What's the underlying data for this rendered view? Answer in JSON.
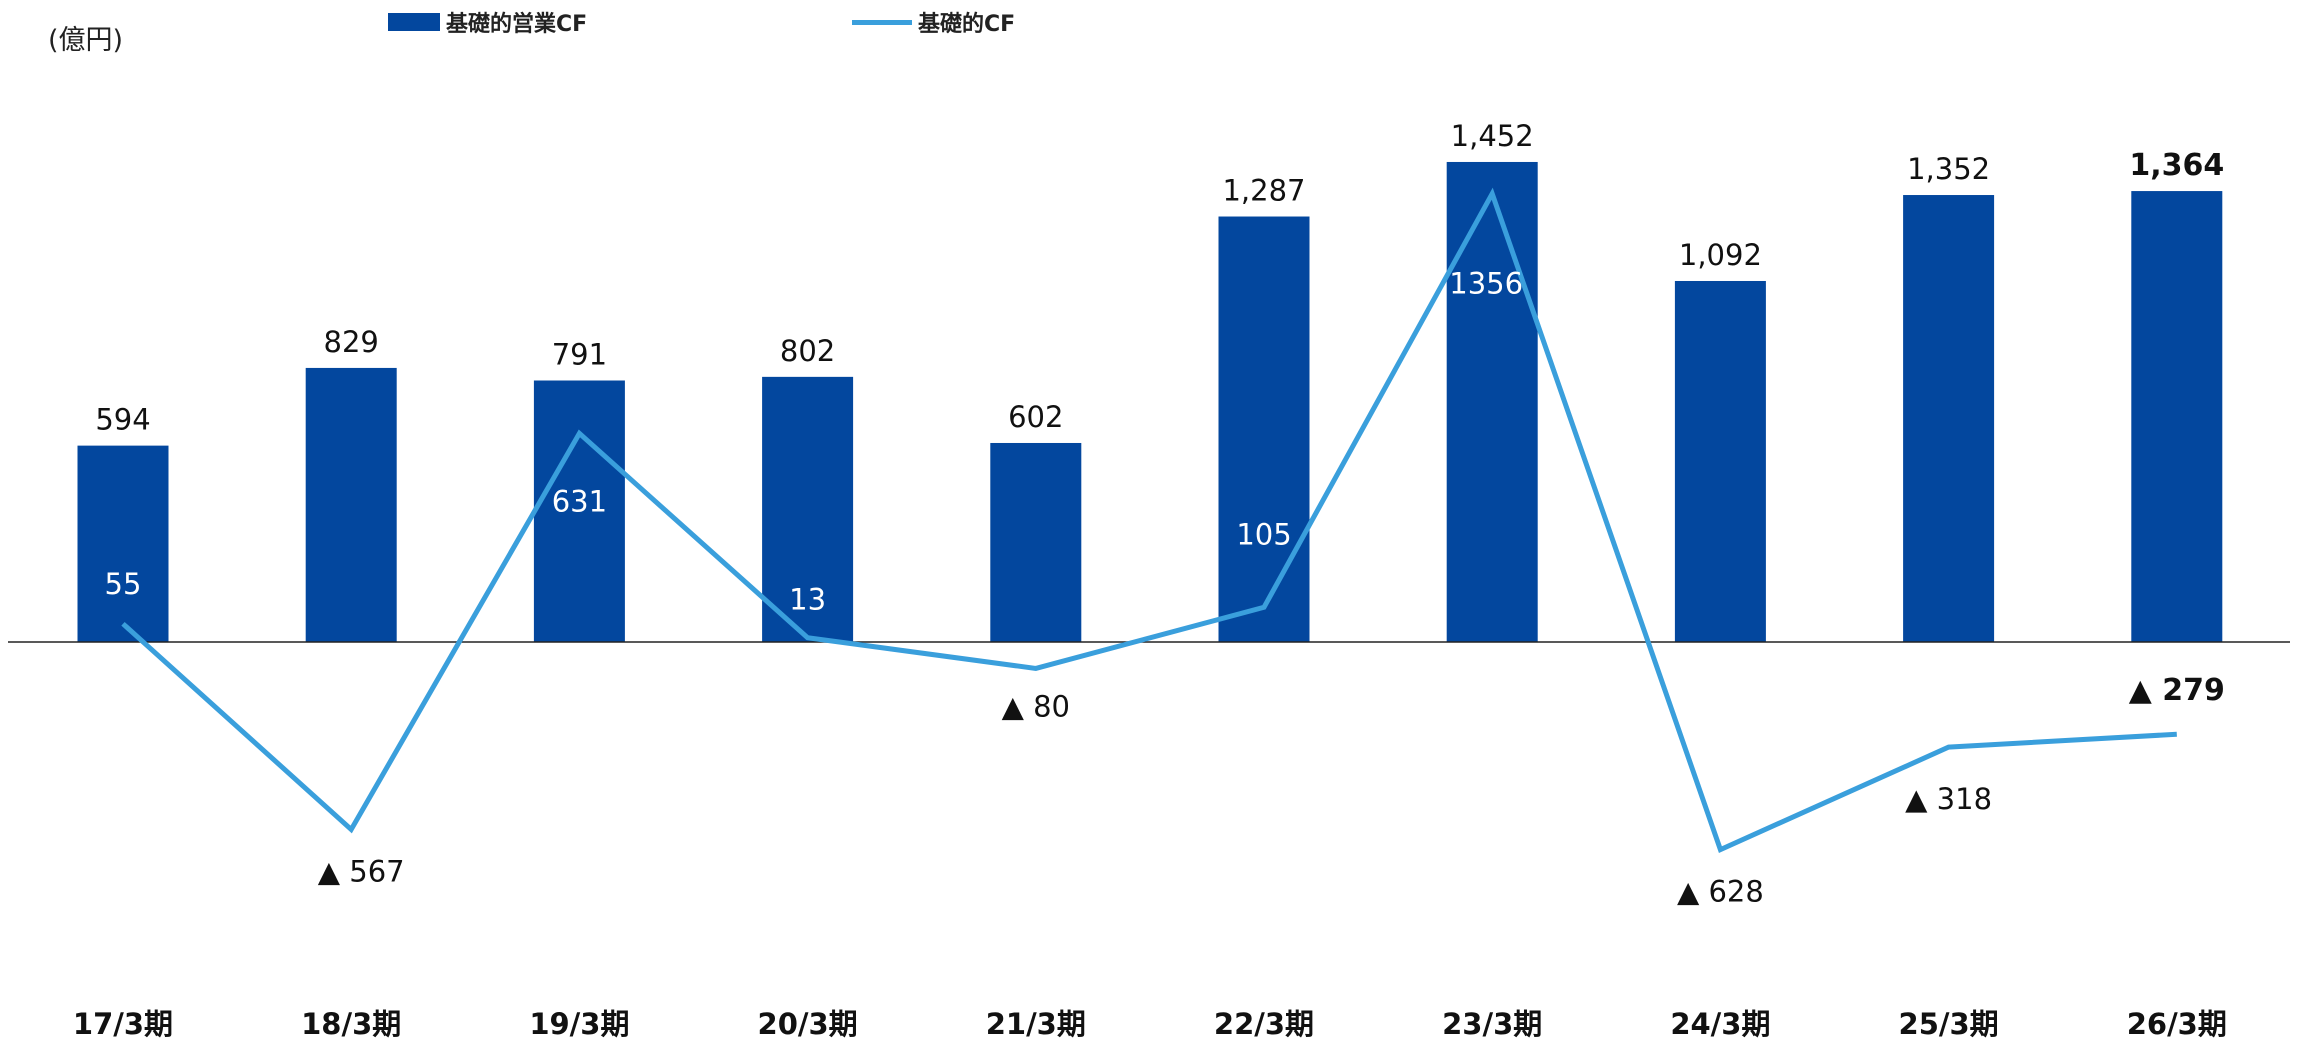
{
  "unit_label": "(億円)",
  "legend": {
    "bar_label": "基礎的営業CF",
    "line_label": "基礎的CF"
  },
  "colors": {
    "bar": "#03479e",
    "line": "#3a9fdc",
    "axis": "#222222",
    "label_dark": "#111111",
    "label_light": "#ffffff"
  },
  "chart_data": {
    "type": "bar",
    "categories": [
      "17/3期",
      "18/3期",
      "19/3期",
      "20/3期",
      "21/3期",
      "22/3期",
      "23/3期",
      "24/3期",
      "25/3期",
      "26/3期"
    ],
    "series": [
      {
        "name": "基礎的営業CF",
        "type": "bar",
        "values": [
          594,
          829,
          791,
          802,
          602,
          1287,
          1452,
          1092,
          1352,
          1364
        ],
        "labels": [
          "594",
          "829",
          "791",
          "802",
          "602",
          "1,287",
          "1,452",
          "1,092",
          "1,352",
          "1,364"
        ]
      },
      {
        "name": "基礎的CF",
        "type": "line",
        "values": [
          55,
          -567,
          631,
          13,
          -80,
          105,
          1356,
          -628,
          -318,
          -279
        ],
        "labels": [
          "55",
          "▲ 567",
          "631",
          "13",
          "▲ 80",
          "105",
          "1356",
          "▲ 628",
          "▲ 318",
          "▲ 279"
        ]
      }
    ],
    "emphasized_category": "26/3期"
  }
}
